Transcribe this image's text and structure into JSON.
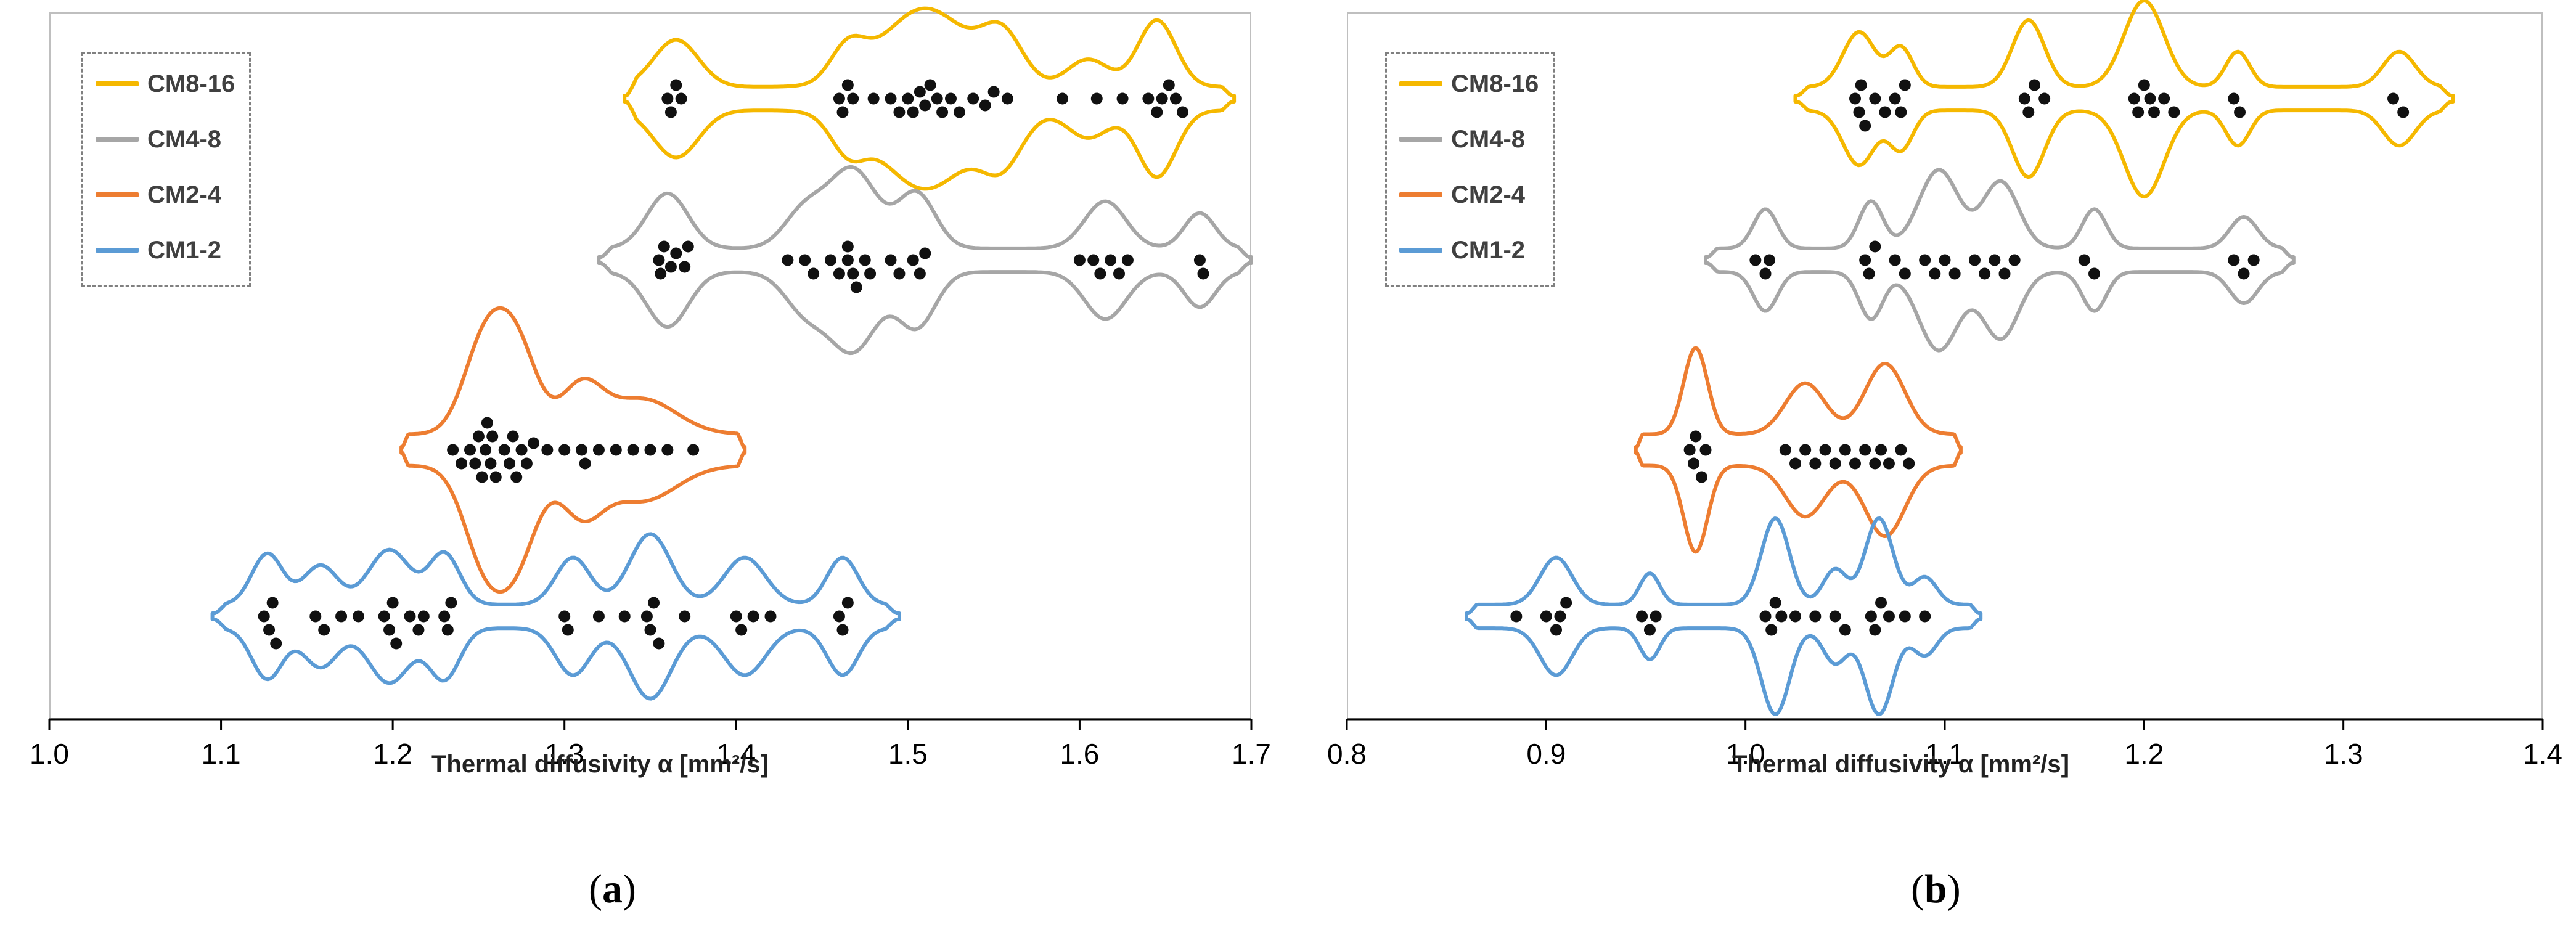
{
  "chart_data": [
    {
      "type": "violin-beeswarm",
      "panel_label": "a",
      "caption_open": "(",
      "caption_close": ")",
      "xlabel": "Thermal diffusivity α [mm²/s]",
      "xlim": [
        1.0,
        1.7
      ],
      "xticks": [
        "1.0",
        "1.1",
        "1.2",
        "1.3",
        "1.4",
        "1.5",
        "1.6",
        "1.7"
      ],
      "grid": false,
      "legend_position": "top-left",
      "series": [
        {
          "name": "CM8-16",
          "color": "#f5b800",
          "row": 4,
          "range": [
            1.335,
            1.69
          ],
          "violin_bumps": [
            [
              1.365,
              0.12,
              0.013
            ],
            [
              1.465,
              0.085,
              0.01
            ],
            [
              1.51,
              0.2,
              0.025
            ],
            [
              1.555,
              0.12,
              0.012
            ],
            [
              1.605,
              0.07,
              0.012
            ],
            [
              1.645,
              0.17,
              0.011
            ]
          ],
          "base_width": 0.03,
          "values": [
            1.36,
            1.362,
            1.365,
            1.368,
            1.46,
            1.462,
            1.465,
            1.468,
            1.48,
            1.49,
            1.495,
            1.5,
            1.503,
            1.507,
            1.51,
            1.513,
            1.517,
            1.52,
            1.525,
            1.53,
            1.538,
            1.545,
            1.55,
            1.558,
            1.59,
            1.61,
            1.625,
            1.64,
            1.645,
            1.648,
            1.652,
            1.656,
            1.66
          ]
        },
        {
          "name": "CM4-8",
          "color": "#a6a6a6",
          "row": 3,
          "range": [
            1.32,
            1.7
          ],
          "violin_bumps": [
            [
              1.36,
              0.14,
              0.012
            ],
            [
              1.44,
              0.095,
              0.012
            ],
            [
              1.468,
              0.2,
              0.014
            ],
            [
              1.505,
              0.14,
              0.011
            ],
            [
              1.615,
              0.12,
              0.012
            ],
            [
              1.67,
              0.09,
              0.009
            ]
          ],
          "base_width": 0.03,
          "values": [
            1.355,
            1.356,
            1.358,
            1.362,
            1.365,
            1.37,
            1.372,
            1.43,
            1.44,
            1.445,
            1.455,
            1.46,
            1.465,
            1.465,
            1.468,
            1.47,
            1.475,
            1.478,
            1.49,
            1.495,
            1.503,
            1.507,
            1.51,
            1.6,
            1.608,
            1.612,
            1.618,
            1.623,
            1.628,
            1.67,
            1.672
          ]
        },
        {
          "name": "CM2-4",
          "color": "#ed7d31",
          "row": 2,
          "range": [
            1.205,
            1.405
          ],
          "violin_bumps": [
            [
              1.253,
              0.22,
              0.012
            ],
            [
              1.272,
              0.22,
              0.012
            ],
            [
              1.31,
              0.12,
              0.012
            ],
            [
              1.345,
              0.09,
              0.02
            ]
          ],
          "base_width": 0.04,
          "values": [
            1.235,
            1.24,
            1.245,
            1.248,
            1.25,
            1.252,
            1.254,
            1.255,
            1.257,
            1.258,
            1.26,
            1.265,
            1.268,
            1.27,
            1.272,
            1.275,
            1.278,
            1.282,
            1.29,
            1.3,
            1.31,
            1.312,
            1.32,
            1.33,
            1.34,
            1.35,
            1.36,
            1.375
          ]
        },
        {
          "name": "CM1-2",
          "color": "#5b9bd5",
          "row": 1,
          "range": [
            1.095,
            1.495
          ],
          "violin_bumps": [
            [
              1.127,
              0.13,
              0.009
            ],
            [
              1.158,
              0.1,
              0.01
            ],
            [
              1.198,
              0.14,
              0.012
            ],
            [
              1.23,
              0.13,
              0.009
            ],
            [
              1.305,
              0.12,
              0.01
            ],
            [
              1.35,
              0.18,
              0.012
            ],
            [
              1.405,
              0.12,
              0.012
            ],
            [
              1.462,
              0.12,
              0.009
            ]
          ],
          "base_width": 0.03,
          "values": [
            1.125,
            1.128,
            1.13,
            1.132,
            1.155,
            1.16,
            1.17,
            1.18,
            1.195,
            1.198,
            1.2,
            1.202,
            1.21,
            1.215,
            1.218,
            1.23,
            1.232,
            1.234,
            1.3,
            1.302,
            1.32,
            1.335,
            1.348,
            1.35,
            1.352,
            1.355,
            1.37,
            1.4,
            1.403,
            1.41,
            1.42,
            1.46,
            1.462,
            1.465
          ]
        }
      ]
    },
    {
      "type": "violin-beeswarm",
      "panel_label": "b",
      "caption_open": "(",
      "caption_close": ")",
      "xlabel": "Thermal diffusivity α [mm²/s]",
      "xlim": [
        0.8,
        1.4
      ],
      "xticks": [
        "0.8",
        "0.9",
        "1.0",
        "1.1",
        "1.2",
        "1.3",
        "1.4"
      ],
      "grid": false,
      "legend_position": "top-left",
      "series": [
        {
          "name": "CM8-16",
          "color": "#f5b800",
          "row": 4,
          "range": [
            1.025,
            1.355
          ],
          "violin_bumps": [
            [
              1.057,
              0.14,
              0.008
            ],
            [
              1.078,
              0.1,
              0.006
            ],
            [
              1.142,
              0.17,
              0.008
            ],
            [
              1.2,
              0.22,
              0.01
            ],
            [
              1.247,
              0.09,
              0.006
            ],
            [
              1.328,
              0.09,
              0.008
            ]
          ],
          "base_width": 0.03,
          "values": [
            1.055,
            1.057,
            1.058,
            1.06,
            1.065,
            1.07,
            1.075,
            1.078,
            1.08,
            1.14,
            1.142,
            1.145,
            1.15,
            1.195,
            1.197,
            1.2,
            1.203,
            1.205,
            1.21,
            1.215,
            1.245,
            1.248,
            1.325,
            1.33
          ]
        },
        {
          "name": "CM4-8",
          "color": "#a6a6a6",
          "row": 3,
          "range": [
            0.98,
            1.275
          ],
          "violin_bumps": [
            [
              1.01,
              0.1,
              0.006
            ],
            [
              1.063,
              0.12,
              0.006
            ],
            [
              1.097,
              0.2,
              0.01
            ],
            [
              1.128,
              0.17,
              0.009
            ],
            [
              1.175,
              0.1,
              0.006
            ],
            [
              1.25,
              0.08,
              0.007
            ]
          ],
          "base_width": 0.03,
          "values": [
            1.005,
            1.01,
            1.012,
            1.06,
            1.062,
            1.065,
            1.075,
            1.08,
            1.09,
            1.095,
            1.1,
            1.105,
            1.115,
            1.12,
            1.125,
            1.13,
            1.135,
            1.17,
            1.175,
            1.245,
            1.25,
            1.255
          ]
        },
        {
          "name": "CM2-4",
          "color": "#ed7d31",
          "row": 2,
          "range": [
            0.945,
            1.108
          ],
          "violin_bumps": [
            [
              0.975,
              0.22,
              0.006
            ],
            [
              1.03,
              0.13,
              0.01
            ],
            [
              1.07,
              0.18,
              0.01
            ]
          ],
          "base_width": 0.04,
          "values": [
            0.972,
            0.974,
            0.975,
            0.978,
            0.98,
            1.02,
            1.025,
            1.03,
            1.035,
            1.04,
            1.045,
            1.05,
            1.055,
            1.06,
            1.065,
            1.068,
            1.072,
            1.078,
            1.082
          ]
        },
        {
          "name": "CM1-2",
          "color": "#5b9bd5",
          "row": 1,
          "range": [
            0.86,
            1.118
          ],
          "violin_bumps": [
            [
              0.905,
              0.12,
              0.008
            ],
            [
              0.952,
              0.08,
              0.005
            ],
            [
              1.015,
              0.22,
              0.007
            ],
            [
              1.045,
              0.09,
              0.006
            ],
            [
              1.067,
              0.22,
              0.007
            ],
            [
              1.09,
              0.07,
              0.006
            ]
          ],
          "base_width": 0.03,
          "values": [
            0.885,
            0.9,
            0.905,
            0.907,
            0.91,
            0.948,
            0.952,
            0.955,
            1.01,
            1.013,
            1.015,
            1.018,
            1.025,
            1.035,
            1.045,
            1.05,
            1.063,
            1.065,
            1.068,
            1.072,
            1.08,
            1.09
          ]
        }
      ]
    }
  ]
}
